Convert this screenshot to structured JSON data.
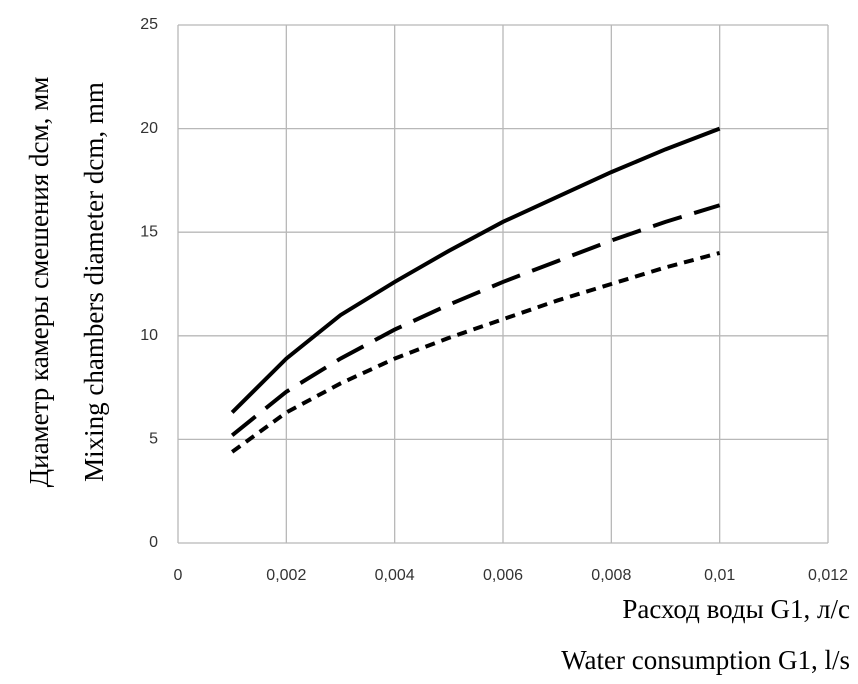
{
  "chart_data": {
    "type": "line",
    "y_label": [
      "Диаметр камеры смешения dсм, мм",
      "Mixing chambers diameter dcm, mm"
    ],
    "x_label": [
      "Расход воды G1, л/с",
      "Water consumption G1, l/s"
    ],
    "x": [
      0.001,
      0.002,
      0.003,
      0.004,
      0.005,
      0.006,
      0.007,
      0.008,
      0.009,
      0.01
    ],
    "series": [
      {
        "color": "#000000",
        "dash": "solid",
        "values": [
          6.3,
          8.9,
          11.0,
          12.6,
          14.1,
          15.5,
          16.7,
          17.9,
          19.0,
          20.0
        ]
      },
      {
        "color": "#000000",
        "dash": "long",
        "values": [
          5.2,
          7.3,
          8.9,
          10.3,
          11.5,
          12.6,
          13.6,
          14.6,
          15.5,
          16.3
        ]
      },
      {
        "color": "#000000",
        "dash": "short",
        "values": [
          4.4,
          6.3,
          7.7,
          8.9,
          9.9,
          10.8,
          11.7,
          12.5,
          13.3,
          14.0
        ]
      }
    ],
    "xlim": [
      0,
      0.012
    ],
    "xticks": [
      0,
      {
        "value": 0.002,
        "label": "0,002"
      },
      {
        "value": 0.004,
        "label": "0,004"
      },
      {
        "value": 0.006,
        "label": "0,006"
      },
      {
        "value": 0.008,
        "label": "0,008"
      },
      {
        "value": 0.01,
        "label": "0,01"
      },
      {
        "value": 0.012,
        "label": "0,012"
      }
    ],
    "ylim": [
      0,
      25
    ],
    "yticks": [
      0,
      5,
      10,
      15,
      20,
      25
    ],
    "grid": true
  }
}
